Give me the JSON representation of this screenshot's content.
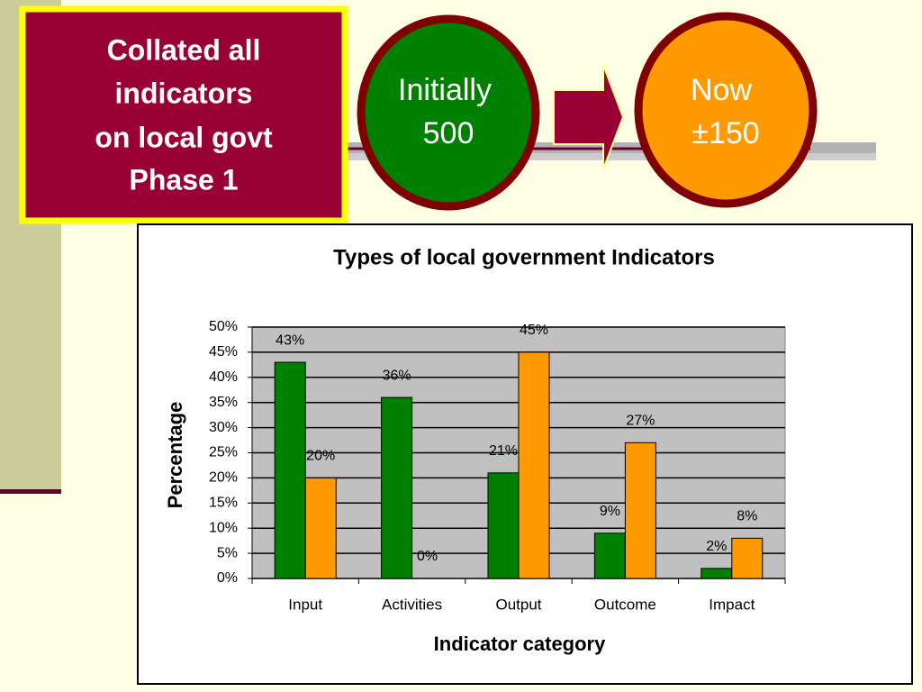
{
  "slide": {
    "box_lines": [
      "Collated all",
      "indicators",
      "on local govt",
      "Phase 1"
    ],
    "start_lines": [
      "Initially",
      "500"
    ],
    "end_lines": [
      "Now",
      "±150"
    ]
  },
  "chart_data": {
    "type": "bar",
    "title": "Types of local government Indicators",
    "x_label": "Indicator category",
    "y_label": "Percentage",
    "categories": [
      "Input",
      "Activities",
      "Output",
      "Outcome",
      "Impact"
    ],
    "series": [
      {
        "color": "#008000",
        "values": [
          43,
          36,
          21,
          9,
          2
        ],
        "value_labels": [
          "43%",
          "36%",
          "21%",
          "9%",
          "2%"
        ]
      },
      {
        "color": "#ff9900",
        "values": [
          20,
          0,
          45,
          27,
          8
        ],
        "value_labels": [
          "20%",
          "0%",
          "45%",
          "27%",
          "8%"
        ]
      }
    ],
    "ylim": [
      0,
      50
    ],
    "yticks": [
      {
        "value": 0,
        "label": "0%"
      },
      {
        "value": 5,
        "label": "5%"
      },
      {
        "value": 10,
        "label": "10%"
      },
      {
        "value": 15,
        "label": "15%"
      },
      {
        "value": 20,
        "label": "20%"
      },
      {
        "value": 25,
        "label": "25%"
      },
      {
        "value": 30,
        "label": "30%"
      },
      {
        "value": 35,
        "label": "35%"
      },
      {
        "value": 40,
        "label": "40%"
      },
      {
        "value": 45,
        "label": "45%"
      },
      {
        "value": 50,
        "label": "50%"
      }
    ],
    "grid": true,
    "plot_background": "#c0c0c0"
  }
}
